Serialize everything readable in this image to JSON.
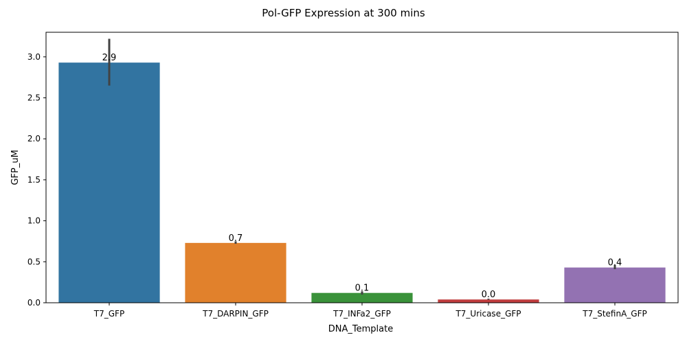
{
  "chart_data": {
    "type": "bar",
    "title": "Pol-GFP Expression at 300 mins",
    "xlabel": "DNA_Template",
    "ylabel": "GFP_uM",
    "ylim": [
      0,
      3.3
    ],
    "yticks": [
      "0.0",
      "0.5",
      "1.0",
      "1.5",
      "2.0",
      "2.5",
      "3.0"
    ],
    "grid": false,
    "categories": [
      "T7_GFP",
      "T7_DARPIN_GFP",
      "T7_INFa2_GFP",
      "T7_Uricase_GFP",
      "T7_StefinA_GFP"
    ],
    "values": [
      2.93,
      0.73,
      0.12,
      0.04,
      0.43
    ],
    "error_low": [
      2.65,
      0.72,
      0.1,
      0.04,
      0.41
    ],
    "error_high": [
      3.22,
      0.75,
      0.14,
      0.05,
      0.46
    ],
    "data_labels": [
      "2.9",
      "0.7",
      "0.1",
      "0.0",
      "0.4"
    ],
    "colors": [
      "#3274a1",
      "#e1812c",
      "#3a923a",
      "#c03d3e",
      "#9372b2"
    ],
    "error_color": "#424242",
    "axis_color": "#000000"
  }
}
